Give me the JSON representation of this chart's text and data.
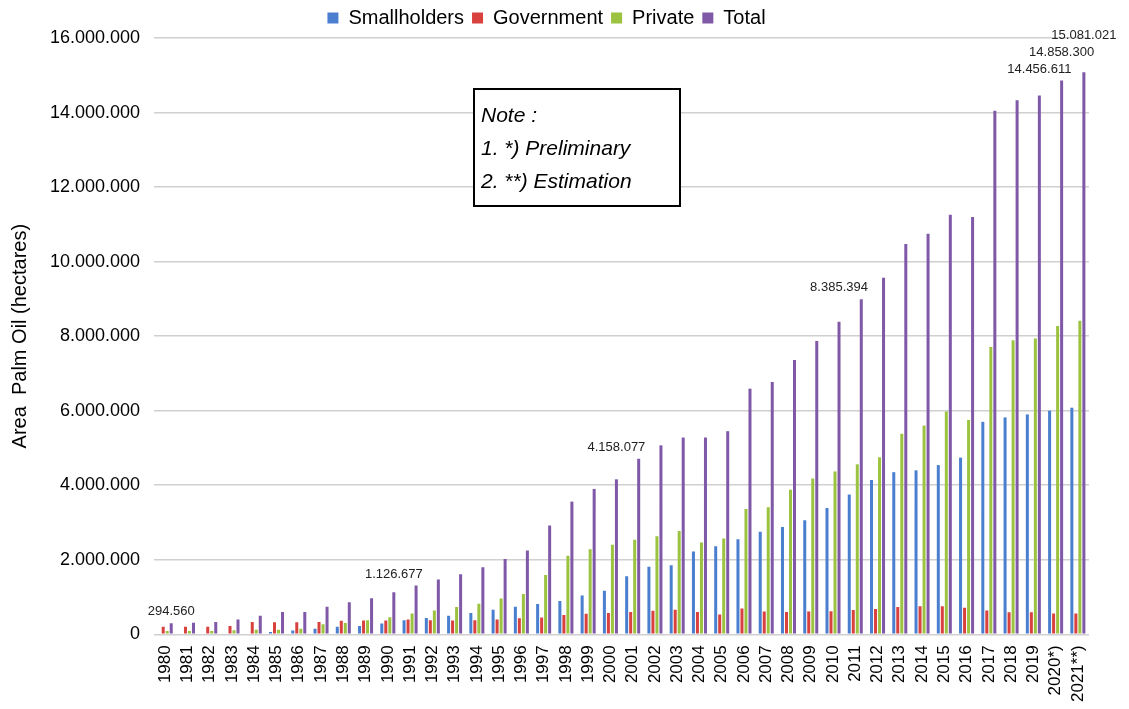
{
  "chart_data": {
    "type": "bar",
    "ylabel": "Area  Palm Oil (hectares)",
    "categories": [
      "1980",
      "1981",
      "1982",
      "1983",
      "1984",
      "1985",
      "1986",
      "1987",
      "1988",
      "1989",
      "1990",
      "1991",
      "1992",
      "1993",
      "1994",
      "1995",
      "1996",
      "1997",
      "1998",
      "1999",
      "2000",
      "2001",
      "2002",
      "2003",
      "2004",
      "2005",
      "2006",
      "2007",
      "2008",
      "2009",
      "2010",
      "2011",
      "2012",
      "2013",
      "2014",
      "2015",
      "2016",
      "2017",
      "2018",
      "2019",
      "2020*)",
      "2021**)"
    ],
    "series": [
      {
        "name": "Smallholders",
        "color": "#4a7fd0",
        "values": [
          null,
          null,
          null,
          null,
          null,
          60000,
          100000,
          150000,
          200000,
          220000,
          290000,
          380000,
          440000,
          500000,
          570000,
          660000,
          740000,
          810000,
          890000,
          1040000,
          1170000,
          1560000,
          1810000,
          1850000,
          2220000,
          2360000,
          2550000,
          2750000,
          2880000,
          3060000,
          3390000,
          3750000,
          4140000,
          4350000,
          4400000,
          4540000,
          4740000,
          5700000,
          5820000,
          5900000,
          6000000,
          6080000
        ]
      },
      {
        "name": "Government",
        "color": "#d9413e",
        "values": [
          200000,
          200000,
          200000,
          220000,
          330000,
          320000,
          320000,
          330000,
          360000,
          370000,
          370000,
          400000,
          380000,
          370000,
          380000,
          400000,
          430000,
          450000,
          520000,
          550000,
          570000,
          600000,
          630000,
          660000,
          600000,
          530000,
          690000,
          610000,
          600000,
          610000,
          620000,
          650000,
          680000,
          730000,
          750000,
          750000,
          710000,
          640000,
          590000,
          590000,
          560000,
          560000
        ]
      },
      {
        "name": "Private",
        "color": "#9bc33f",
        "values": [
          90000,
          90000,
          90000,
          110000,
          120000,
          120000,
          150000,
          270000,
          300000,
          380000,
          460000,
          560000,
          640000,
          730000,
          820000,
          960000,
          1080000,
          1590000,
          2110000,
          2280000,
          2400000,
          2540000,
          2630000,
          2770000,
          2460000,
          2570000,
          3360000,
          3410000,
          3880000,
          4180000,
          4370000,
          4560000,
          4750000,
          5380000,
          5600000,
          5980000,
          5750000,
          7710000,
          7890000,
          7940000,
          8270000,
          8410000
        ]
      },
      {
        "name": "Total",
        "color": "#7f58a8",
        "values": [
          294560,
          310000,
          330000,
          400000,
          500000,
          600000,
          600000,
          740000,
          860000,
          970000,
          1126677,
          1310000,
          1470000,
          1610000,
          1800000,
          2020000,
          2250000,
          2920000,
          3560000,
          3900000,
          4158077,
          4710000,
          5070000,
          5280000,
          5280000,
          5450000,
          6590000,
          6770000,
          7360000,
          7870000,
          8385394,
          8990000,
          9570000,
          10470000,
          10750000,
          11260000,
          11200000,
          14050000,
          14330000,
          14456611,
          14858300,
          15081021
        ],
        "value_labels": [
          "294.560",
          null,
          null,
          null,
          null,
          null,
          null,
          null,
          null,
          null,
          "1.126.677",
          null,
          null,
          null,
          null,
          null,
          null,
          null,
          null,
          null,
          "4.158.077",
          null,
          null,
          null,
          null,
          null,
          null,
          null,
          null,
          null,
          "8.385.394",
          null,
          null,
          null,
          null,
          null,
          null,
          null,
          null,
          "14.456.611",
          "14.858.300",
          "15.081.021"
        ]
      }
    ],
    "ylim": [
      0,
      16000000
    ],
    "yticks": [
      {
        "value": 0,
        "label": "0"
      },
      {
        "value": 2000000,
        "label": "2.000.000"
      },
      {
        "value": 4000000,
        "label": "4.000.000"
      },
      {
        "value": 6000000,
        "label": "6.000.000"
      },
      {
        "value": 8000000,
        "label": "8.000.000"
      },
      {
        "value": 10000000,
        "label": "10.000.000"
      },
      {
        "value": 12000000,
        "label": "12.000.000"
      },
      {
        "value": 14000000,
        "label": "14.000.000"
      },
      {
        "value": 16000000,
        "label": "16.000.000"
      }
    ],
    "grid": "y",
    "legend": "top",
    "annotations": [
      "Note  :",
      "1.    *) Preliminary",
      "2.  **) Estimation"
    ]
  }
}
